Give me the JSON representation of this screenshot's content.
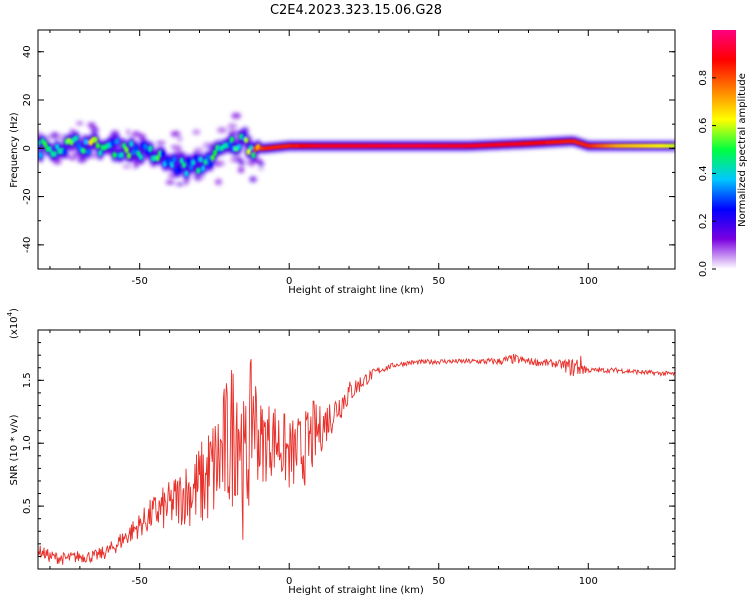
{
  "title": "C2E4.2023.323.15.06.G28",
  "colors": {
    "snr_line": "#e8312b",
    "axes": "#000000"
  },
  "chart_data": [
    {
      "type": "heatmap",
      "xlabel": "Height of straight line (km)",
      "ylabel": "Frequency (Hz)",
      "xlim": [
        -84,
        129
      ],
      "ylim": [
        -50,
        49
      ],
      "xticks": [
        -50,
        0,
        50,
        100
      ],
      "xtick_labels": [
        "-50",
        "0",
        "50",
        "100"
      ],
      "yticks": [
        -40,
        -20,
        0,
        20,
        40
      ],
      "ytick_labels": [
        "-40",
        "-20",
        "0",
        "20",
        "40"
      ],
      "grid": false,
      "colorbar": {
        "label": "Normalized spectral amplitude",
        "range": [
          0,
          1
        ],
        "ticks": [
          0.0,
          0.2,
          0.4,
          0.6,
          0.8
        ],
        "tick_labels": [
          "0.0",
          "0.2",
          "0.4",
          "0.6",
          "0.8"
        ],
        "colormap": [
          "#ffffff",
          "#7a00e0",
          "#0000ff",
          "#00c8ff",
          "#00ff40",
          "#ffff00",
          "#ff8000",
          "#ff0000",
          "#ff0080"
        ]
      },
      "ridge": {
        "x": [
          -84,
          -75,
          -70,
          -65,
          -60,
          -55,
          -50,
          -45,
          -40,
          -35,
          -30,
          -25,
          -20,
          -15,
          -12,
          -8,
          0,
          10,
          20,
          40,
          60,
          80,
          95,
          100,
          110,
          129
        ],
        "frequency": [
          0,
          1,
          2,
          1,
          0,
          0,
          -1,
          -3,
          -6,
          -8,
          -7,
          -3,
          1,
          3,
          0,
          0,
          1,
          1,
          1,
          1,
          1,
          2,
          3,
          1,
          1,
          1
        ],
        "amplitude": [
          0.5,
          0.55,
          0.6,
          0.6,
          0.55,
          0.55,
          0.5,
          0.5,
          0.45,
          0.45,
          0.45,
          0.5,
          0.5,
          0.55,
          0.75,
          0.85,
          0.85,
          0.9,
          0.9,
          0.92,
          0.9,
          0.88,
          0.85,
          0.85,
          0.7,
          0.6
        ]
      }
    },
    {
      "type": "line",
      "xlabel": "Height of straight line (km)",
      "ylabel": "SNR (10 * v/v)",
      "y_scale_label": "(x10",
      "y_scale_exponent": "4",
      "y_scale_close": ")",
      "xlim": [
        -84,
        129
      ],
      "ylim": [
        0,
        1.9
      ],
      "xticks": [
        -50,
        0,
        50,
        100
      ],
      "xtick_labels": [
        "-50",
        "0",
        "50",
        "100"
      ],
      "yticks": [
        0.5,
        1.0,
        1.5
      ],
      "ytick_labels": [
        "0.5",
        "1.0",
        "1.5"
      ],
      "grid": false,
      "series": [
        {
          "x": [
            -84,
            -80,
            -75,
            -70,
            -65,
            -60,
            -55,
            -50,
            -45,
            -40,
            -35,
            -30,
            -25,
            -20,
            -17,
            -15,
            -12,
            -10,
            -5,
            0,
            5,
            8,
            10,
            15,
            20,
            25,
            30,
            35,
            40,
            50,
            60,
            70,
            75,
            80,
            90,
            95,
            97,
            100,
            110,
            120,
            129
          ],
          "values": [
            0.15,
            0.1,
            0.08,
            0.1,
            0.1,
            0.15,
            0.25,
            0.35,
            0.45,
            0.5,
            0.6,
            0.65,
            0.8,
            1.0,
            1.25,
            0.7,
            1.3,
            1.0,
            1.05,
            0.9,
            0.95,
            1.05,
            1.1,
            1.25,
            1.4,
            1.5,
            1.58,
            1.62,
            1.64,
            1.65,
            1.65,
            1.65,
            1.67,
            1.65,
            1.63,
            1.6,
            1.62,
            1.58,
            1.58,
            1.56,
            1.55
          ],
          "noise": [
            0.05,
            0.05,
            0.05,
            0.05,
            0.05,
            0.06,
            0.08,
            0.1,
            0.15,
            0.2,
            0.25,
            0.35,
            0.45,
            0.6,
            0.65,
            0.6,
            0.5,
            0.35,
            0.3,
            0.3,
            0.3,
            0.3,
            0.2,
            0.15,
            0.1,
            0.06,
            0.03,
            0.02,
            0.02,
            0.02,
            0.02,
            0.03,
            0.04,
            0.03,
            0.03,
            0.08,
            0.1,
            0.02,
            0.02,
            0.02,
            0.02
          ]
        }
      ]
    }
  ]
}
